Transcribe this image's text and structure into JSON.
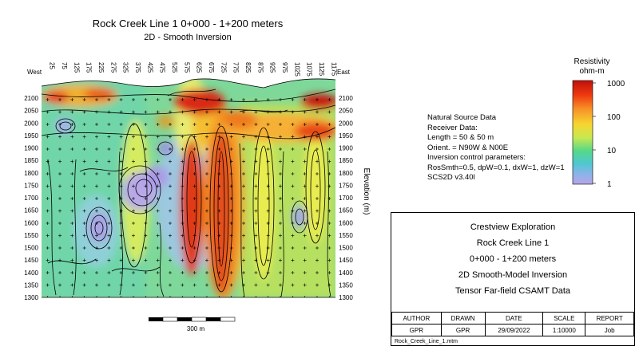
{
  "titles": {
    "main": "Rock Creek Line 1 0+000 - 1+200 meters",
    "sub": "2D - Smooth Inversion"
  },
  "chart_data": {
    "type": "heatmap",
    "title": "Rock Creek Line 1 0+000 - 1+200 meters",
    "subtitle": "2D - Smooth Inversion",
    "xlabel": "",
    "ylabel": "Elevation (m)",
    "x_left_label": "West",
    "x_right_label": "East",
    "xlim": [
      25,
      1200
    ],
    "ylim": [
      1300,
      2130
    ],
    "x_ticks": [
      "25",
      "75",
      "125",
      "175",
      "225",
      "275",
      "325",
      "375",
      "425",
      "475",
      "525",
      "575",
      "625",
      "675",
      "725",
      "775",
      "825",
      "875",
      "925",
      "975",
      "1025",
      "1075",
      "1125",
      "1175"
    ],
    "y_ticks": [
      "1300",
      "1350",
      "1400",
      "1450",
      "1500",
      "1550",
      "1600",
      "1650",
      "1700",
      "1750",
      "1800",
      "1850",
      "1900",
      "1950",
      "2000",
      "2050",
      "2100"
    ],
    "colorbar": {
      "title": "Resistivity",
      "unit": "ohm-m",
      "scale": "log",
      "ticks": [
        "1000",
        "100",
        "10",
        "1"
      ],
      "colors": [
        "#c0100a",
        "#ee3a10",
        "#f89428",
        "#f7d530",
        "#c8e850",
        "#55d88a",
        "#4fc8d0",
        "#8ab4e8",
        "#b8a4e8"
      ]
    },
    "grid": false,
    "legend_position": "right"
  },
  "notes": [
    "Natural Source Data",
    "Receiver Data:",
    "Length = 50 & 50 m",
    "Orient. = N90W & N00E",
    "Inversion control parameters:",
    "RosSmth=0.5, dpW=0.1, dxW=1, dzW=1",
    "SCS2D  v3.40l"
  ],
  "title_block": {
    "company": "Crestview Exploration",
    "line": "Rock Creek Line 1",
    "range": "0+000 - 1+200 meters",
    "model": "2D Smooth-Model Inversion",
    "data_type": "Tensor Far-field CSAMT Data",
    "headers": [
      "AUTHOR",
      "DRAWN",
      "DATE",
      "SCALE",
      "REPORT"
    ],
    "values": [
      "GPR",
      "GPR",
      "29/09/2022",
      "1:10000",
      "Job"
    ],
    "filename": "Rock_Creek_Line_1.mtm"
  },
  "scalebar": {
    "label": "300 m"
  }
}
